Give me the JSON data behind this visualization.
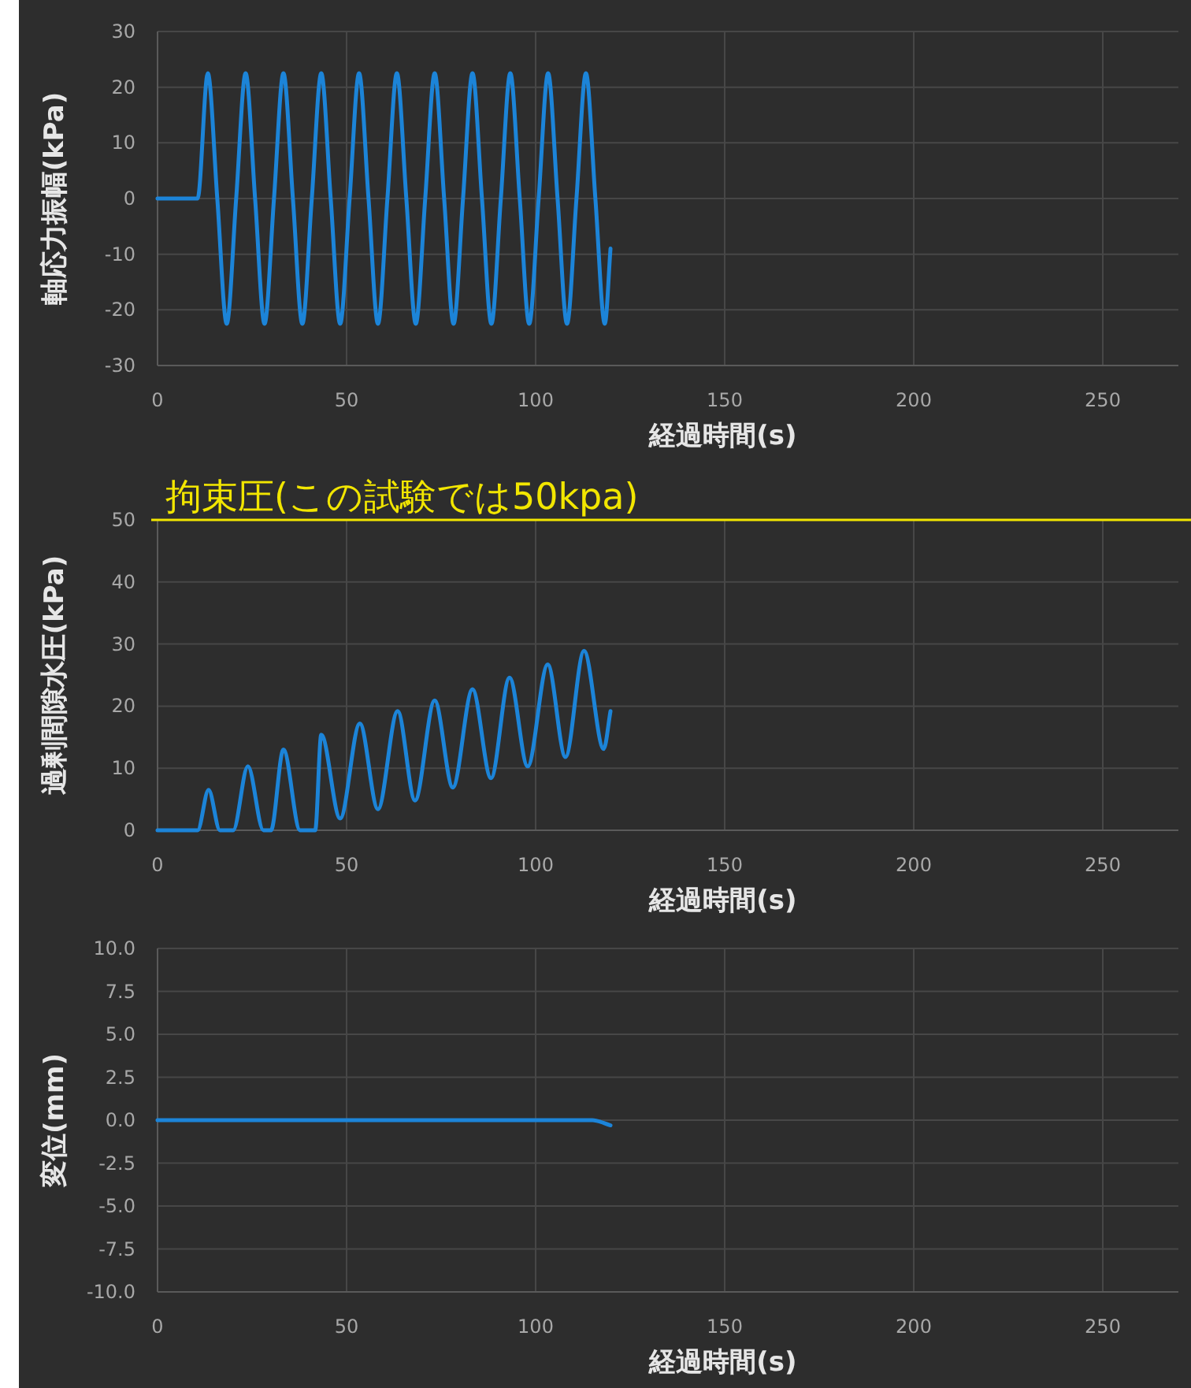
{
  "chart_data": [
    {
      "type": "line",
      "xlabel": "経過時間(s)",
      "ylabel": "軸応力振幅(kPa)",
      "xlim": [
        0,
        270
      ],
      "xticks": [
        0,
        50,
        100,
        150,
        200,
        250
      ],
      "ylim": [
        -30,
        30
      ],
      "yticks": [
        -30,
        -20,
        -10,
        0,
        10,
        20,
        30
      ],
      "grid": true,
      "series": [
        {
          "color": "#1c84d8",
          "x": [
            0,
            10.6,
            13.3,
            15.8,
            18.3,
            20.8,
            23.3,
            25.8,
            28.3,
            30.8,
            33.3,
            35.8,
            38.3,
            40.8,
            43.3,
            45.8,
            48.3,
            50.8,
            53.3,
            55.8,
            58.3,
            60.8,
            63.3,
            65.8,
            68.3,
            70.8,
            73.3,
            75.8,
            78.3,
            80.8,
            83.3,
            85.8,
            88.3,
            90.8,
            93.3,
            95.8,
            98.3,
            100.8,
            103.3,
            105.8,
            108.3,
            110.8,
            113.3,
            115.8,
            118.3,
            119.8
          ],
          "values": [
            0,
            0,
            22.5,
            0,
            -22.5,
            0,
            22.5,
            0,
            -22.5,
            0,
            22.5,
            0,
            -22.5,
            0,
            22.5,
            0,
            -22.5,
            0,
            22.5,
            0,
            -22.5,
            0,
            22.5,
            0,
            -22.5,
            0,
            22.5,
            0,
            -22.5,
            0,
            22.5,
            0,
            -22.5,
            0,
            22.5,
            0,
            -22.5,
            0,
            22.5,
            0,
            -22.5,
            0,
            22.5,
            0,
            -22.5,
            -9
          ]
        }
      ]
    },
    {
      "type": "line",
      "xlabel": "経過時間(s)",
      "ylabel": "過剰間隙水圧(kPa)",
      "xlim": [
        0,
        270
      ],
      "xticks": [
        0,
        50,
        100,
        150,
        200,
        250
      ],
      "ylim": [
        0,
        50
      ],
      "yticks": [
        0,
        10,
        20,
        30,
        40,
        50
      ],
      "grid": true,
      "ref_lines": [
        {
          "axis": "y",
          "value": 50,
          "label": "拘束圧(この試験では50kpa)",
          "color": "#f2e600"
        }
      ],
      "series": [
        {
          "color": "#1c84d8",
          "x": [
            0,
            10.6,
            13.5,
            16.5,
            20,
            23.9,
            28,
            30,
            33.3,
            37.7,
            41.7,
            43.3,
            48.3,
            53.5,
            58.3,
            63.5,
            68.1,
            73.3,
            78.1,
            83.3,
            88.2,
            93.1,
            97.9,
            103.2,
            107.9,
            112.8,
            118,
            119.8
          ],
          "values": [
            0,
            0,
            6.5,
            0,
            0,
            10.3,
            0,
            0,
            13,
            0,
            0,
            15.4,
            1.9,
            17.2,
            3.4,
            19.2,
            4.8,
            20.9,
            6.9,
            22.7,
            8.4,
            24.6,
            10.3,
            26.7,
            11.8,
            28.9,
            13.1,
            19.2
          ]
        }
      ]
    },
    {
      "type": "line",
      "xlabel": "経過時間(s)",
      "ylabel": "変位(mm)",
      "xlim": [
        0,
        270
      ],
      "xticks": [
        0,
        50,
        100,
        150,
        200,
        250
      ],
      "ylim": [
        -10,
        10
      ],
      "yticks": [
        {
          "value": -10,
          "label": "-10.0"
        },
        -7.5,
        {
          "value": -5,
          "label": "-5.0"
        },
        -2.5,
        {
          "value": 0,
          "label": "0.0"
        },
        2.5,
        {
          "value": 5,
          "label": "5.0"
        },
        7.5,
        {
          "value": 10,
          "label": "10.0"
        }
      ],
      "grid": true,
      "series": [
        {
          "color": "#1c84d8",
          "x": [
            0,
            20,
            40,
            60,
            80,
            100,
            110,
            115,
            119.8
          ],
          "values": [
            0,
            0,
            0,
            0,
            0,
            0,
            0,
            0,
            -0.3
          ]
        }
      ]
    }
  ]
}
